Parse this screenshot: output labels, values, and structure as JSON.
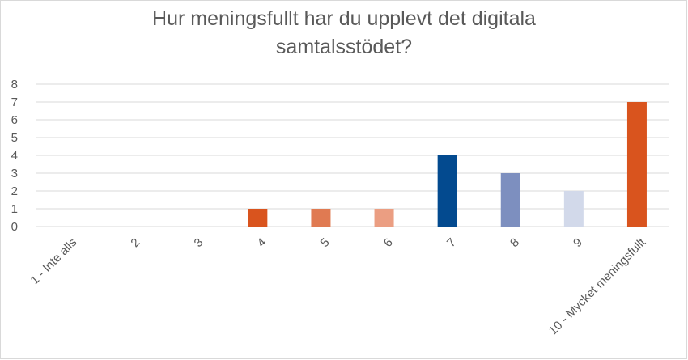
{
  "chart_data": {
    "type": "bar",
    "title_line1": "Hur meningsfullt har du upplevt det digitala",
    "title_line2": "samtalsstödet?",
    "categories": [
      "1 - Inte alls",
      "2",
      "3",
      "4",
      "5",
      "6",
      "7",
      "8",
      "9",
      "10 - Mycket meningsfullt"
    ],
    "values": [
      0,
      0,
      0,
      1,
      1,
      1,
      4,
      3,
      2,
      7
    ],
    "bar_colors": [
      "#d9541e",
      "#d9541e",
      "#d9541e",
      "#d9541e",
      "#e07a52",
      "#eb9e82",
      "#034a8f",
      "#7d8fbf",
      "#d2d9ea",
      "#d9541e"
    ],
    "ylim": [
      0,
      8
    ],
    "yticks": [
      0,
      1,
      2,
      3,
      4,
      5,
      6,
      7,
      8
    ],
    "grid": true,
    "xlabel": "",
    "ylabel": "",
    "colors": {
      "gridline": "#d9d9d9",
      "text": "#595959"
    }
  }
}
